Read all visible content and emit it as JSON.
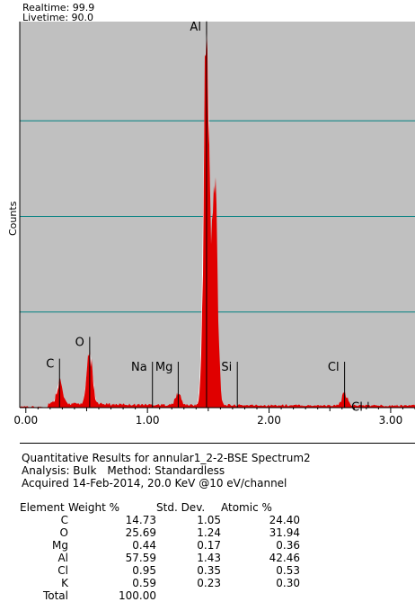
{
  "header": {
    "realtime": "Realtime: 99.9",
    "livetime": "Livetime: 90.0"
  },
  "chart_data": {
    "type": "bar",
    "ylabel": "Counts",
    "xlim": [
      -0.05,
      3.2
    ],
    "ylim": [
      0,
      100
    ],
    "x_ticks": [
      {
        "value": 0.0,
        "label": "0.00"
      },
      {
        "value": 1.0,
        "label": "1.00"
      },
      {
        "value": 2.0,
        "label": "2.00"
      },
      {
        "value": 3.0,
        "label": "3.00"
      }
    ],
    "grid_y": [
      25,
      50,
      75
    ],
    "background": "#c0c0c0",
    "gridline_color": "#008080",
    "spectrum_color": "#e00000",
    "reference_color": "#ffffff",
    "peaks": [
      {
        "x": 0.277,
        "y": 6,
        "ref": 6
      },
      {
        "x": 0.525,
        "y": 13,
        "ref": 14
      },
      {
        "x": 1.253,
        "y": 3,
        "ref": 2.5
      },
      {
        "x": 1.486,
        "y": 100,
        "ref": 100
      },
      {
        "x": 1.555,
        "y": 57,
        "ref": 10
      },
      {
        "x": 2.621,
        "y": 3,
        "ref": 1
      }
    ],
    "element_markers": [
      {
        "label": "C",
        "x": 0.277,
        "height": 12.8
      },
      {
        "label": "O",
        "x": 0.525,
        "height": 18.5
      },
      {
        "label": "Na",
        "x": 1.041,
        "height": 12.0
      },
      {
        "label": "Mg",
        "x": 1.253,
        "height": 12.0
      },
      {
        "label": "Al",
        "x": 1.486,
        "height": 101
      },
      {
        "label": "Si",
        "x": 1.739,
        "height": 12.0
      },
      {
        "label": "Cl",
        "x": 2.621,
        "height": 12.0
      },
      {
        "label": "Cl",
        "x": 2.815,
        "height": 1.5
      }
    ]
  },
  "results": {
    "title": "Quantitative Results for annular1_2-2-BSE Spectrum2",
    "analysis_label": "Analysis: Bulk",
    "method_label": "Method: Standardless",
    "acquired": "Acquired 14-Feb-2014, 20.0 KeV @10 eV/channel",
    "columns": [
      "Element",
      "Weight %",
      "Std. Dev.",
      "Atomic %"
    ],
    "rows": [
      [
        "C",
        "14.73",
        "1.05",
        "24.40"
      ],
      [
        "O",
        "25.69",
        "1.24",
        "31.94"
      ],
      [
        "Mg",
        "0.44",
        "0.17",
        "0.36"
      ],
      [
        "Al",
        "57.59",
        "1.43",
        "42.46"
      ],
      [
        "Cl",
        "0.95",
        "0.35",
        "0.53"
      ],
      [
        "K",
        "0.59",
        "0.23",
        "0.30"
      ],
      [
        "Total",
        "100.00",
        "",
        ""
      ]
    ]
  }
}
